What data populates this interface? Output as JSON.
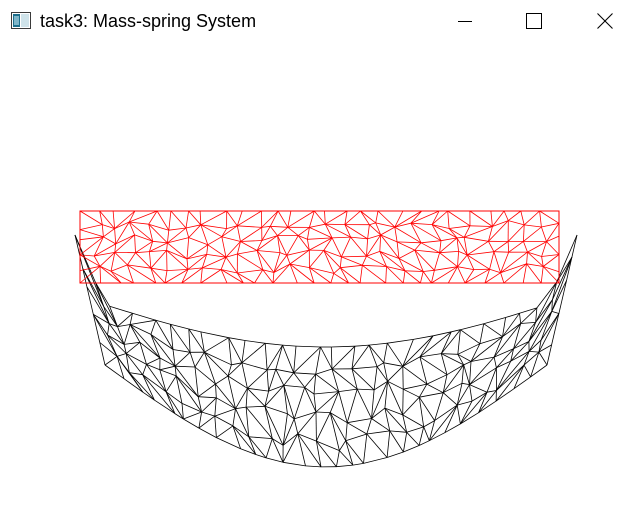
{
  "window": {
    "title": "task3: Mass-spring System",
    "icons": {
      "app": "application-window-icon",
      "minimize": "minimize-icon",
      "maximize": "maximize-icon",
      "close": "close-icon"
    }
  },
  "scene": {
    "rest_mesh_color": "#ff0000",
    "deformed_mesh_color": "#000000",
    "background_color": "#ffffff"
  }
}
